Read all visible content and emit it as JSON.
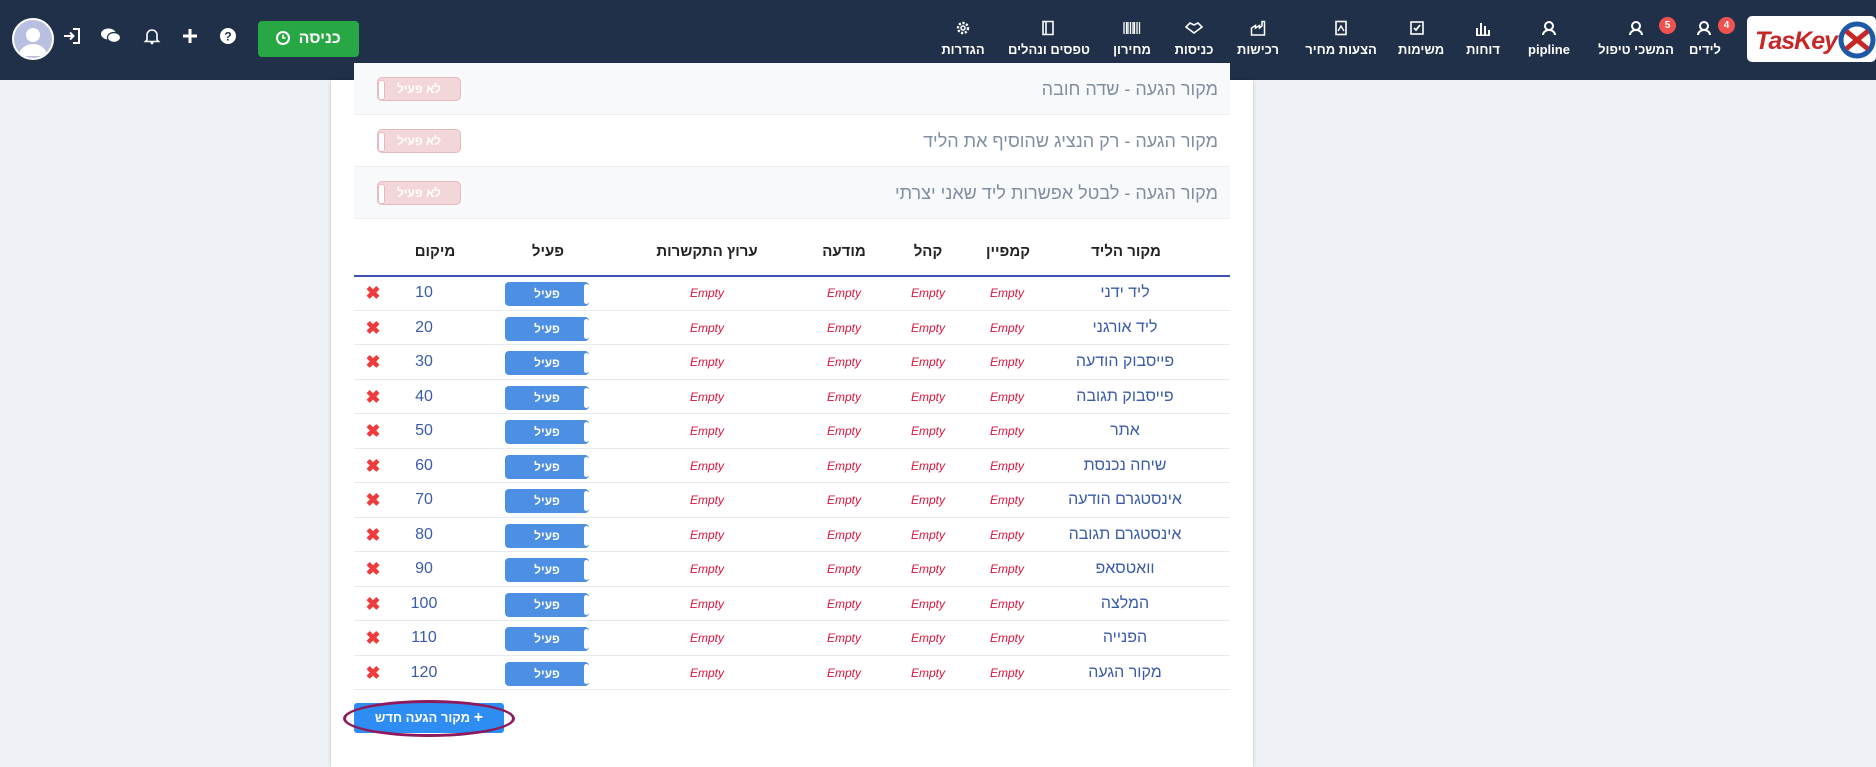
{
  "brand": {
    "logo_text": "TasKey"
  },
  "nav": {
    "items": [
      {
        "key": "leads",
        "label": "לידים",
        "icon": "user-headset-icon",
        "badge": "4"
      },
      {
        "key": "continue",
        "label": "המשכי טיפול",
        "icon": "user-headset-icon",
        "badge": "5"
      },
      {
        "key": "pipeline",
        "label": "pipline",
        "icon": "user-headset-icon",
        "badge": null
      },
      {
        "key": "reports",
        "label": "דוחות",
        "icon": "bar-chart-icon",
        "badge": null
      },
      {
        "key": "tasks",
        "label": "משימות",
        "icon": "checkbox-icon",
        "badge": null
      },
      {
        "key": "quotes",
        "label": "הצעות מחיר",
        "icon": "document-icon",
        "badge": null
      },
      {
        "key": "purchases",
        "label": "רכישות",
        "icon": "factory-icon",
        "badge": null
      },
      {
        "key": "entries",
        "label": "כניסות",
        "icon": "handshake-icon",
        "badge": null
      },
      {
        "key": "pricelist",
        "label": "מחירון",
        "icon": "barcode-icon",
        "badge": null
      },
      {
        "key": "forms",
        "label": "טפסים ונהלים",
        "icon": "book-icon",
        "badge": null
      },
      {
        "key": "settings",
        "label": "הגדרות",
        "icon": "gear-icon",
        "badge": null
      }
    ],
    "enter_button": "כניסה",
    "icons": [
      "help-icon",
      "plus-icon",
      "bell-icon",
      "chat-icon",
      "sign-in-icon",
      "avatar"
    ]
  },
  "settings": [
    {
      "label": "מקור הגעה - שדה חובה",
      "state": "לא פעיל"
    },
    {
      "label": "מקור הגעה - רק הנציג שהוסיף את הליד",
      "state": "לא פעיל"
    },
    {
      "label": "מקור הגעה - לבטל אפשרות ליד שאני יצרתי",
      "state": "לא פעיל"
    }
  ],
  "table": {
    "headers": {
      "source": "מקור הליד",
      "campaign": "קמפיין",
      "audience": "קהל",
      "ad": "מודעה",
      "channel": "ערוץ התקשרות",
      "active": "פעיל",
      "rank": "מיקום"
    },
    "empty_text": "Empty",
    "active_text": "פעיל",
    "rows": [
      {
        "source": "ליד ידני",
        "rank": "10"
      },
      {
        "source": "ליד אורגני",
        "rank": "20"
      },
      {
        "source": "פייסבוק הודעה",
        "rank": "30"
      },
      {
        "source": "פייסבוק תגובה",
        "rank": "40"
      },
      {
        "source": "אתר",
        "rank": "50"
      },
      {
        "source": "שיחה נכנסת",
        "rank": "60"
      },
      {
        "source": "אינסטגרם הודעה",
        "rank": "70"
      },
      {
        "source": "אינסטגרם תגובה",
        "rank": "80"
      },
      {
        "source": "וואטסאפ",
        "rank": "90"
      },
      {
        "source": "המלצה",
        "rank": "100"
      },
      {
        "source": "הפנייה",
        "rank": "110"
      },
      {
        "source": "מקור הגעה",
        "rank": "120"
      }
    ]
  },
  "add_button": {
    "label": "מקור הגעה חדש"
  },
  "colors": {
    "navbar": "#1f3048",
    "primary": "#2e8df2",
    "success": "#28a745",
    "danger": "#ef3b3b",
    "empty": "#dc143c"
  }
}
